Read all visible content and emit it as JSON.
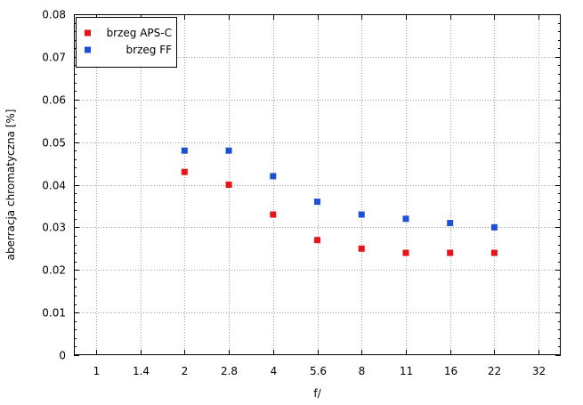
{
  "chart_data": {
    "type": "scatter",
    "xlabel": "f/",
    "ylabel": "aberracja chromatyczna [%]",
    "categories": [
      "1",
      "1.4",
      "2",
      "2.8",
      "4",
      "5.6",
      "8",
      "11",
      "16",
      "22",
      "32"
    ],
    "ylim": [
      0,
      0.08
    ],
    "y_ticks": [
      "0",
      "0.01",
      "0.02",
      "0.03",
      "0.04",
      "0.05",
      "0.06",
      "0.07",
      "0.08"
    ],
    "y_tick_values": [
      0,
      0.01,
      0.02,
      0.03,
      0.04,
      0.05,
      0.06,
      0.07,
      0.08
    ],
    "grid": true,
    "legend_position": "top-left",
    "series": [
      {
        "name": "brzeg APS-C",
        "color": "#e8141a",
        "x": [
          "2",
          "2.8",
          "4",
          "5.6",
          "8",
          "11",
          "16",
          "22"
        ],
        "values": [
          0.043,
          0.04,
          0.033,
          0.027,
          0.025,
          0.024,
          0.024,
          0.024
        ]
      },
      {
        "name": "brzeg FF",
        "color": "#1e4fd8",
        "x": [
          "2",
          "2.8",
          "4",
          "5.6",
          "8",
          "11",
          "16",
          "22"
        ],
        "values": [
          0.048,
          0.048,
          0.042,
          0.036,
          0.033,
          0.032,
          0.031,
          0.03
        ]
      }
    ]
  }
}
